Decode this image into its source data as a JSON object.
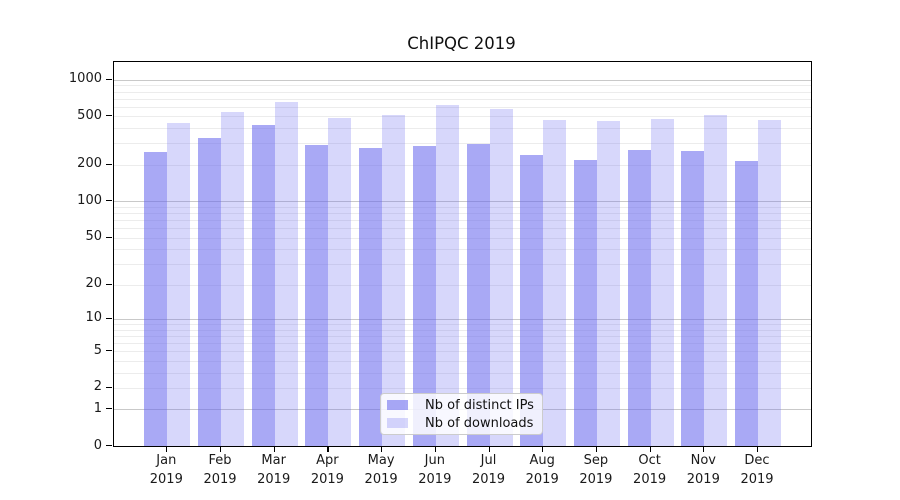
{
  "title": "ChIPQC 2019",
  "colors": {
    "bar_distinct_ips": "rgba(102,102,238,0.56)",
    "bar_downloads": "rgba(102,102,238,0.26)",
    "grid_major": "#c9c9c9",
    "grid_minor": "#ececec",
    "spine": "#000000",
    "text": "#111111"
  },
  "legend": {
    "position": "lower-center",
    "items": [
      {
        "label": "Nb of distinct IPs",
        "series": "distinct_ips"
      },
      {
        "label": "Nb of downloads",
        "series": "downloads"
      }
    ]
  },
  "chart_data": {
    "type": "bar",
    "title": "ChIPQC 2019",
    "xlabel": "",
    "ylabel": "",
    "y_scale": "log1p",
    "grid": "horizontal",
    "categories": [
      "Jan 2019",
      "Feb 2019",
      "Mar 2019",
      "Apr 2019",
      "May 2019",
      "Jun 2019",
      "Jul 2019",
      "Aug 2019",
      "Sep 2019",
      "Oct 2019",
      "Nov 2019",
      "Dec 2019"
    ],
    "series": [
      {
        "name": "Nb of distinct IPs",
        "values": [
          253,
          332,
          422,
          293,
          274,
          287,
          296,
          239,
          221,
          266,
          258,
          217
        ]
      },
      {
        "name": "Nb of downloads",
        "values": [
          440,
          547,
          660,
          481,
          510,
          620,
          580,
          464,
          458,
          475,
          513,
          470
        ]
      }
    ],
    "y_ticks": [
      0,
      1,
      2,
      5,
      10,
      20,
      50,
      100,
      200,
      500,
      1000
    ],
    "y_minor_gridlines": [
      2,
      3,
      4,
      5,
      6,
      7,
      8,
      9,
      20,
      30,
      40,
      50,
      60,
      70,
      80,
      90,
      200,
      300,
      400,
      500,
      600,
      700,
      800,
      900
    ],
    "y_major_gridlines": [
      1,
      10,
      100,
      1000
    ],
    "ylim": [
      0,
      1400
    ]
  }
}
